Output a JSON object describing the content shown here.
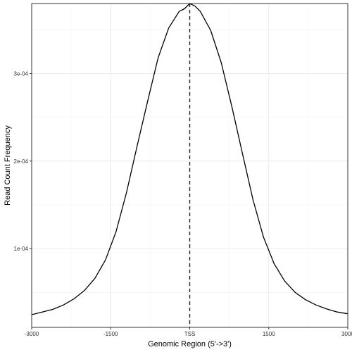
{
  "chart_data": {
    "type": "line",
    "xlabel": "Genomic Region (5'->3')",
    "ylabel": "Read Count Frequency",
    "xlim": [
      -3000,
      3000
    ],
    "ylim": [
      1e-05,
      0.00038
    ],
    "x_ticks": [
      {
        "value": -3000,
        "label": "-3000"
      },
      {
        "value": -1500,
        "label": "-1500"
      },
      {
        "value": 0,
        "label": "TSS"
      },
      {
        "value": 1500,
        "label": "1500"
      },
      {
        "value": 3000,
        "label": "3000"
      }
    ],
    "y_ticks": [
      {
        "value": 0.0001,
        "label": "1e-04"
      },
      {
        "value": 0.0002,
        "label": "2e-04"
      },
      {
        "value": 0.0003,
        "label": "3e-04"
      }
    ],
    "vline": {
      "x": 0,
      "style": "dashed"
    },
    "grid": true,
    "series": [
      {
        "color": "#000000",
        "x": [
          -3000,
          -2800,
          -2600,
          -2400,
          -2200,
          -2000,
          -1800,
          -1600,
          -1400,
          -1200,
          -1000,
          -800,
          -600,
          -400,
          -200,
          -100,
          0,
          100,
          200,
          400,
          600,
          800,
          1000,
          1200,
          1400,
          1600,
          1800,
          2000,
          2200,
          2400,
          2600,
          2800,
          3000
        ],
        "y": [
          2.45e-05,
          2.75e-05,
          3.05e-05,
          3.55e-05,
          4.25e-05,
          5.2e-05,
          6.6e-05,
          8.7e-05,
          0.000119,
          0.000164,
          0.000217,
          0.000268,
          0.000318,
          0.000352,
          0.000371,
          0.000374,
          0.00038,
          0.000377,
          0.000371,
          0.000349,
          0.000312,
          0.000262,
          0.000209,
          0.000156,
          0.000113,
          8.3e-05,
          6.3e-05,
          5e-05,
          4.15e-05,
          3.55e-05,
          3.1e-05,
          2.75e-05,
          2.55e-05
        ]
      }
    ]
  }
}
